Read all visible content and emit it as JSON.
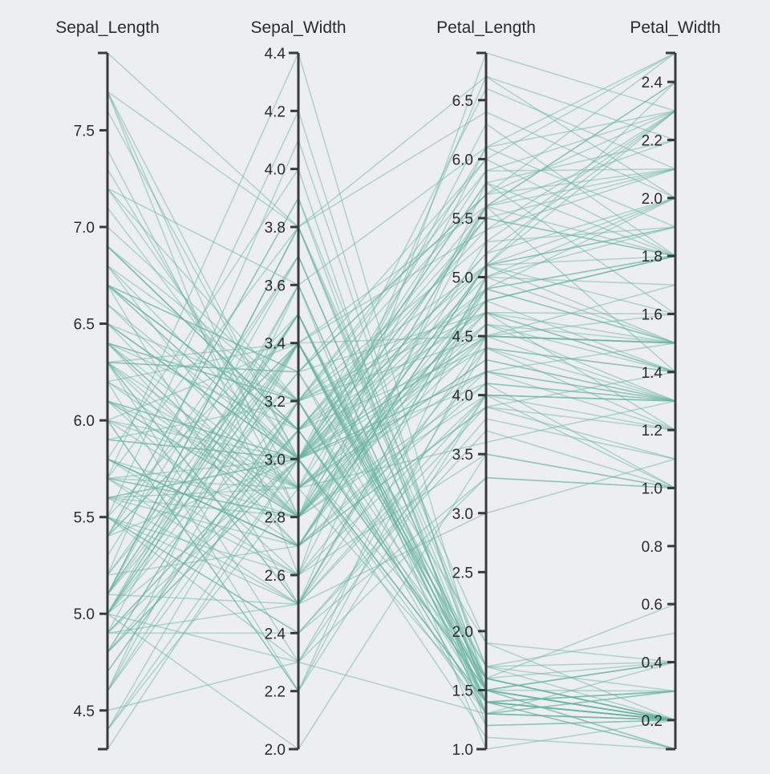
{
  "chart_data": {
    "type": "parallel-coordinates",
    "line_color": "#69b3a2",
    "axis_color": "#3a3a3a",
    "background": "#eceeef",
    "dimensions": [
      {
        "key": "sepal_length",
        "label": "Sepal_Length",
        "range": [
          4.3,
          7.9
        ],
        "ticks": [
          "4.5",
          "5.0",
          "5.5",
          "6.0",
          "6.5",
          "7.0",
          "7.5"
        ]
      },
      {
        "key": "sepal_width",
        "label": "Sepal_Width",
        "range": [
          2.0,
          4.4
        ],
        "ticks": [
          "2.0",
          "2.2",
          "2.4",
          "2.6",
          "2.8",
          "3.0",
          "3.2",
          "3.4",
          "3.6",
          "3.8",
          "4.0",
          "4.2",
          "4.4"
        ]
      },
      {
        "key": "petal_length",
        "label": "Petal_Length",
        "range": [
          1.0,
          6.9
        ],
        "ticks": [
          "1.0",
          "1.5",
          "2.0",
          "2.5",
          "3.0",
          "3.5",
          "4.0",
          "4.5",
          "5.0",
          "5.5",
          "6.0",
          "6.5"
        ]
      },
      {
        "key": "petal_width",
        "label": "Petal_Width",
        "range": [
          0.1,
          2.5
        ],
        "ticks": [
          "0.2",
          "0.4",
          "0.6",
          "0.8",
          "1.0",
          "1.2",
          "1.4",
          "1.6",
          "1.8",
          "2.0",
          "2.2",
          "2.4"
        ]
      }
    ],
    "records": [
      [
        5.1,
        3.5,
        1.4,
        0.2
      ],
      [
        4.9,
        3.0,
        1.4,
        0.2
      ],
      [
        4.7,
        3.2,
        1.3,
        0.2
      ],
      [
        4.6,
        3.1,
        1.5,
        0.2
      ],
      [
        5.0,
        3.6,
        1.4,
        0.2
      ],
      [
        5.4,
        3.9,
        1.7,
        0.4
      ],
      [
        4.6,
        3.4,
        1.4,
        0.3
      ],
      [
        5.0,
        3.4,
        1.5,
        0.2
      ],
      [
        4.4,
        2.9,
        1.4,
        0.2
      ],
      [
        4.9,
        3.1,
        1.5,
        0.1
      ],
      [
        5.4,
        3.7,
        1.5,
        0.2
      ],
      [
        4.8,
        3.4,
        1.6,
        0.2
      ],
      [
        4.8,
        3.0,
        1.4,
        0.1
      ],
      [
        4.3,
        3.0,
        1.1,
        0.1
      ],
      [
        5.8,
        4.0,
        1.2,
        0.2
      ],
      [
        5.7,
        4.4,
        1.5,
        0.4
      ],
      [
        5.4,
        3.9,
        1.3,
        0.4
      ],
      [
        5.1,
        3.5,
        1.4,
        0.3
      ],
      [
        5.7,
        3.8,
        1.7,
        0.3
      ],
      [
        5.1,
        3.8,
        1.5,
        0.3
      ],
      [
        5.4,
        3.4,
        1.7,
        0.2
      ],
      [
        5.1,
        3.7,
        1.5,
        0.4
      ],
      [
        4.6,
        3.6,
        1.0,
        0.2
      ],
      [
        5.1,
        3.3,
        1.7,
        0.5
      ],
      [
        4.8,
        3.4,
        1.9,
        0.2
      ],
      [
        5.0,
        3.0,
        1.6,
        0.2
      ],
      [
        5.0,
        3.4,
        1.6,
        0.4
      ],
      [
        5.2,
        3.5,
        1.5,
        0.2
      ],
      [
        5.2,
        3.4,
        1.4,
        0.2
      ],
      [
        4.7,
        3.2,
        1.6,
        0.2
      ],
      [
        4.8,
        3.1,
        1.6,
        0.2
      ],
      [
        5.4,
        3.4,
        1.5,
        0.4
      ],
      [
        5.2,
        4.1,
        1.5,
        0.1
      ],
      [
        5.5,
        4.2,
        1.4,
        0.2
      ],
      [
        4.9,
        3.1,
        1.5,
        0.2
      ],
      [
        5.0,
        3.2,
        1.2,
        0.2
      ],
      [
        5.5,
        3.5,
        1.3,
        0.2
      ],
      [
        4.9,
        3.6,
        1.4,
        0.1
      ],
      [
        4.4,
        3.0,
        1.3,
        0.2
      ],
      [
        5.1,
        3.4,
        1.5,
        0.2
      ],
      [
        5.0,
        3.5,
        1.3,
        0.3
      ],
      [
        4.5,
        2.3,
        1.3,
        0.3
      ],
      [
        4.4,
        3.2,
        1.3,
        0.2
      ],
      [
        5.0,
        3.5,
        1.6,
        0.6
      ],
      [
        5.1,
        3.8,
        1.9,
        0.4
      ],
      [
        4.8,
        3.0,
        1.4,
        0.3
      ],
      [
        5.1,
        3.8,
        1.6,
        0.2
      ],
      [
        4.6,
        3.2,
        1.4,
        0.2
      ],
      [
        5.3,
        3.7,
        1.5,
        0.2
      ],
      [
        5.0,
        3.3,
        1.4,
        0.2
      ],
      [
        7.0,
        3.2,
        4.7,
        1.4
      ],
      [
        6.4,
        3.2,
        4.5,
        1.5
      ],
      [
        6.9,
        3.1,
        4.9,
        1.5
      ],
      [
        5.5,
        2.3,
        4.0,
        1.3
      ],
      [
        6.5,
        2.8,
        4.6,
        1.5
      ],
      [
        5.7,
        2.8,
        4.5,
        1.3
      ],
      [
        6.3,
        3.3,
        4.7,
        1.6
      ],
      [
        4.9,
        2.4,
        3.3,
        1.0
      ],
      [
        6.6,
        2.9,
        4.6,
        1.3
      ],
      [
        5.2,
        2.7,
        3.9,
        1.4
      ],
      [
        5.0,
        2.0,
        3.5,
        1.0
      ],
      [
        5.9,
        3.0,
        4.2,
        1.5
      ],
      [
        6.0,
        2.2,
        4.0,
        1.0
      ],
      [
        6.1,
        2.9,
        4.7,
        1.4
      ],
      [
        5.6,
        2.9,
        3.6,
        1.3
      ],
      [
        6.7,
        3.1,
        4.4,
        1.4
      ],
      [
        5.6,
        3.0,
        4.5,
        1.5
      ],
      [
        5.8,
        2.7,
        4.1,
        1.0
      ],
      [
        6.2,
        2.2,
        4.5,
        1.5
      ],
      [
        5.6,
        2.5,
        3.9,
        1.1
      ],
      [
        5.9,
        3.2,
        4.8,
        1.8
      ],
      [
        6.1,
        2.8,
        4.0,
        1.3
      ],
      [
        6.3,
        2.5,
        4.9,
        1.5
      ],
      [
        6.1,
        2.8,
        4.7,
        1.2
      ],
      [
        6.4,
        2.9,
        4.3,
        1.3
      ],
      [
        6.6,
        3.0,
        4.4,
        1.4
      ],
      [
        6.8,
        2.8,
        4.8,
        1.4
      ],
      [
        6.7,
        3.0,
        5.0,
        1.7
      ],
      [
        6.0,
        2.9,
        4.5,
        1.5
      ],
      [
        5.7,
        2.6,
        3.5,
        1.0
      ],
      [
        5.5,
        2.4,
        3.8,
        1.1
      ],
      [
        5.5,
        2.4,
        3.7,
        1.0
      ],
      [
        5.8,
        2.7,
        3.9,
        1.2
      ],
      [
        6.0,
        2.7,
        5.1,
        1.6
      ],
      [
        5.4,
        3.0,
        4.5,
        1.5
      ],
      [
        6.0,
        3.4,
        4.5,
        1.6
      ],
      [
        6.7,
        3.1,
        4.7,
        1.5
      ],
      [
        6.3,
        2.3,
        4.4,
        1.3
      ],
      [
        5.6,
        3.0,
        4.1,
        1.3
      ],
      [
        5.5,
        2.5,
        4.0,
        1.3
      ],
      [
        5.5,
        2.6,
        4.4,
        1.2
      ],
      [
        6.1,
        3.0,
        4.6,
        1.4
      ],
      [
        5.8,
        2.6,
        4.0,
        1.2
      ],
      [
        5.0,
        2.3,
        3.3,
        1.0
      ],
      [
        5.6,
        2.7,
        4.2,
        1.3
      ],
      [
        5.7,
        3.0,
        4.2,
        1.2
      ],
      [
        5.7,
        2.9,
        4.2,
        1.3
      ],
      [
        6.2,
        2.9,
        4.3,
        1.3
      ],
      [
        5.1,
        2.5,
        3.0,
        1.1
      ],
      [
        5.7,
        2.8,
        4.1,
        1.3
      ],
      [
        6.3,
        3.3,
        6.0,
        2.5
      ],
      [
        5.8,
        2.7,
        5.1,
        1.9
      ],
      [
        7.1,
        3.0,
        5.9,
        2.1
      ],
      [
        6.3,
        2.9,
        5.6,
        1.8
      ],
      [
        6.5,
        3.0,
        5.8,
        2.2
      ],
      [
        7.6,
        3.0,
        6.6,
        2.1
      ],
      [
        4.9,
        2.5,
        4.5,
        1.7
      ],
      [
        7.3,
        2.9,
        6.3,
        1.8
      ],
      [
        6.7,
        2.5,
        5.8,
        1.8
      ],
      [
        7.2,
        3.6,
        6.1,
        2.5
      ],
      [
        6.5,
        3.2,
        5.1,
        2.0
      ],
      [
        6.4,
        2.7,
        5.3,
        1.9
      ],
      [
        6.8,
        3.0,
        5.5,
        2.1
      ],
      [
        5.7,
        2.5,
        5.0,
        2.0
      ],
      [
        5.8,
        2.8,
        5.1,
        2.4
      ],
      [
        6.4,
        3.2,
        5.3,
        2.3
      ],
      [
        6.5,
        3.0,
        5.5,
        1.8
      ],
      [
        7.7,
        3.8,
        6.7,
        2.2
      ],
      [
        7.7,
        2.6,
        6.9,
        2.3
      ],
      [
        6.0,
        2.2,
        5.0,
        1.5
      ],
      [
        6.9,
        3.2,
        5.7,
        2.3
      ],
      [
        5.6,
        2.8,
        4.9,
        2.0
      ],
      [
        7.7,
        2.8,
        6.7,
        2.0
      ],
      [
        6.3,
        2.7,
        4.9,
        1.8
      ],
      [
        6.7,
        3.3,
        5.7,
        2.1
      ],
      [
        7.2,
        3.2,
        6.0,
        1.8
      ],
      [
        6.2,
        2.8,
        4.8,
        1.8
      ],
      [
        6.1,
        3.0,
        4.9,
        1.8
      ],
      [
        6.4,
        2.8,
        5.6,
        2.1
      ],
      [
        7.2,
        3.0,
        5.8,
        1.6
      ],
      [
        7.4,
        2.8,
        6.1,
        1.9
      ],
      [
        7.9,
        3.8,
        6.4,
        2.0
      ],
      [
        6.4,
        2.8,
        5.6,
        2.2
      ],
      [
        6.3,
        2.8,
        5.1,
        1.5
      ],
      [
        6.1,
        2.6,
        5.6,
        1.4
      ],
      [
        7.7,
        3.0,
        6.1,
        2.3
      ],
      [
        6.3,
        3.4,
        5.6,
        2.4
      ],
      [
        6.4,
        3.1,
        5.5,
        1.8
      ],
      [
        6.0,
        3.0,
        4.8,
        1.8
      ],
      [
        6.9,
        3.1,
        5.4,
        2.1
      ],
      [
        6.7,
        3.1,
        5.6,
        2.4
      ],
      [
        6.9,
        3.1,
        5.1,
        2.3
      ],
      [
        5.8,
        2.7,
        5.1,
        1.9
      ],
      [
        6.8,
        3.2,
        5.9,
        2.3
      ],
      [
        6.7,
        3.3,
        5.7,
        2.5
      ],
      [
        6.7,
        3.0,
        5.2,
        2.3
      ],
      [
        6.3,
        2.5,
        5.0,
        1.9
      ],
      [
        6.5,
        3.0,
        5.2,
        2.0
      ],
      [
        6.2,
        3.4,
        5.4,
        2.3
      ],
      [
        5.9,
        3.0,
        5.1,
        1.8
      ]
    ]
  }
}
